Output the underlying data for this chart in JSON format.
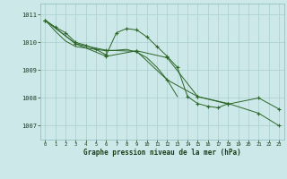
{
  "xlabel": "Graphe pression niveau de la mer (hPa)",
  "bg_color": "#cce8e8",
  "grid_color": "#aacece",
  "line_color": "#2d6628",
  "ylim": [
    1006.5,
    1011.4
  ],
  "xlim": [
    -0.5,
    23.5
  ],
  "yticks": [
    1007,
    1008,
    1009,
    1010,
    1011
  ],
  "xticks": [
    0,
    1,
    2,
    3,
    4,
    5,
    6,
    7,
    8,
    9,
    10,
    11,
    12,
    13,
    14,
    15,
    16,
    17,
    18,
    19,
    20,
    21,
    22,
    23
  ],
  "series": [
    {
      "x": [
        0,
        1,
        2,
        3,
        4,
        5,
        6,
        7,
        8,
        9,
        10,
        11,
        12,
        13,
        14,
        15,
        16,
        17,
        18
      ],
      "y": [
        1010.8,
        1010.55,
        1010.35,
        1010.0,
        1009.9,
        1009.75,
        1009.55,
        1010.35,
        1010.5,
        1010.45,
        1010.2,
        1009.85,
        1009.5,
        1009.1,
        1008.05,
        1007.8,
        1007.7,
        1007.65,
        1007.8
      ],
      "marker": true
    },
    {
      "x": [
        0,
        1,
        2,
        3,
        4,
        5,
        6,
        7,
        8,
        9,
        10,
        11,
        12,
        13
      ],
      "y": [
        1010.8,
        1010.4,
        1010.05,
        1009.85,
        1009.8,
        1009.75,
        1009.7,
        1009.72,
        1009.75,
        1009.65,
        1009.45,
        1009.1,
        1008.65,
        1008.05
      ],
      "marker": false
    },
    {
      "x": [
        0,
        3,
        6,
        9,
        12,
        15,
        18,
        21,
        23
      ],
      "y": [
        1010.8,
        1009.95,
        1009.5,
        1009.7,
        1009.45,
        1008.05,
        1007.8,
        1007.45,
        1007.0
      ],
      "marker": true
    },
    {
      "x": [
        0,
        3,
        6,
        9,
        12,
        15,
        18,
        21,
        23
      ],
      "y": [
        1010.8,
        1009.95,
        1009.72,
        1009.68,
        1008.65,
        1008.05,
        1007.78,
        1008.0,
        1007.6
      ],
      "marker": true
    }
  ]
}
